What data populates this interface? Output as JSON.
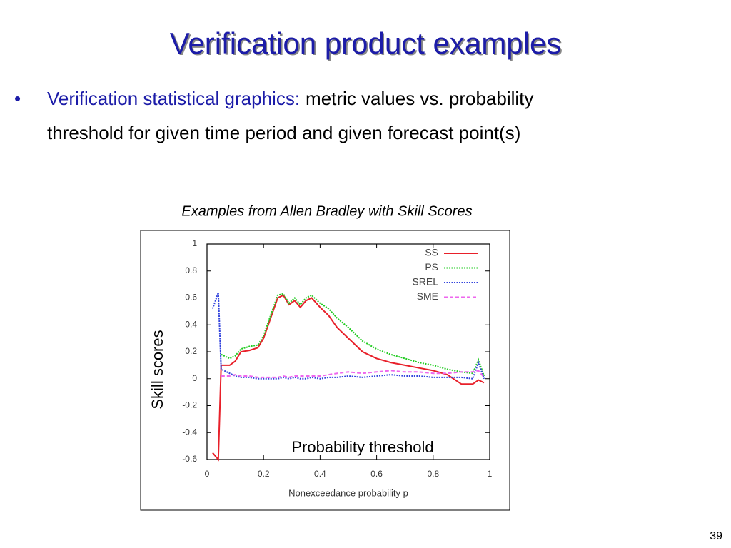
{
  "slide": {
    "title": "Verification product examples",
    "bullet": {
      "lead": "Verification statistical graphics:",
      "text_lines": [
        "metric values vs. probability",
        "threshold for given time period and given forecast point(s)"
      ]
    },
    "caption": "Examples from Allen Bradley with Skill Scores",
    "overlay_ylabel": "Skill scores",
    "overlay_xlabel": "Probability threshold",
    "page_number": "39"
  },
  "chart_data": {
    "type": "line",
    "xlabel": "Nonexceedance probability p",
    "x": [
      0.02,
      0.04,
      0.05,
      0.08,
      0.1,
      0.12,
      0.15,
      0.18,
      0.2,
      0.22,
      0.25,
      0.27,
      0.29,
      0.31,
      0.33,
      0.35,
      0.37,
      0.4,
      0.43,
      0.46,
      0.5,
      0.55,
      0.6,
      0.65,
      0.7,
      0.75,
      0.8,
      0.85,
      0.9,
      0.94,
      0.96,
      0.98
    ],
    "series": [
      {
        "name": "SS",
        "color": "#e8202a",
        "style": "solid",
        "values": [
          -0.55,
          -0.6,
          0.1,
          0.1,
          0.13,
          0.2,
          0.21,
          0.23,
          0.3,
          0.42,
          0.6,
          0.62,
          0.55,
          0.58,
          0.53,
          0.58,
          0.6,
          0.53,
          0.47,
          0.38,
          0.3,
          0.2,
          0.15,
          0.12,
          0.1,
          0.08,
          0.06,
          0.03,
          -0.04,
          -0.04,
          -0.01,
          -0.03
        ]
      },
      {
        "name": "PS",
        "color": "#22cc22",
        "style": "dotted",
        "values": [
          null,
          null,
          0.18,
          0.15,
          0.17,
          0.22,
          0.24,
          0.25,
          0.32,
          0.44,
          0.62,
          0.63,
          0.56,
          0.6,
          0.55,
          0.6,
          0.62,
          0.56,
          0.52,
          0.45,
          0.38,
          0.28,
          0.22,
          0.18,
          0.15,
          0.12,
          0.1,
          0.07,
          0.05,
          0.04,
          0.14,
          0.02
        ]
      },
      {
        "name": "SREL",
        "color": "#3344dd",
        "style": "dotted",
        "values": [
          0.52,
          0.64,
          0.07,
          0.04,
          0.02,
          0.01,
          0.01,
          0.0,
          0.0,
          0.0,
          0.0,
          0.01,
          0.0,
          0.01,
          0.0,
          0.0,
          0.01,
          0.0,
          0.01,
          0.01,
          0.02,
          0.01,
          0.02,
          0.03,
          0.02,
          0.02,
          0.01,
          0.01,
          0.01,
          0.0,
          0.12,
          0.0
        ]
      },
      {
        "name": "SME",
        "color": "#ee66ee",
        "style": "dashed",
        "values": [
          null,
          null,
          0.02,
          0.02,
          0.03,
          0.02,
          0.02,
          0.01,
          0.01,
          0.01,
          0.01,
          0.02,
          0.01,
          0.02,
          0.02,
          0.02,
          0.02,
          0.02,
          0.03,
          0.04,
          0.05,
          0.04,
          0.05,
          0.06,
          0.05,
          0.05,
          0.04,
          0.04,
          0.05,
          0.05,
          0.06,
          0.01
        ]
      }
    ],
    "xlim": [
      0,
      1
    ],
    "xticks": [
      0,
      0.2,
      0.4,
      0.6,
      0.8,
      1
    ],
    "ylim": [
      -0.6,
      1
    ],
    "yticks": [
      -0.6,
      -0.4,
      -0.2,
      0,
      0.2,
      0.4,
      0.6,
      0.8,
      1
    ],
    "legend": "upper right"
  }
}
